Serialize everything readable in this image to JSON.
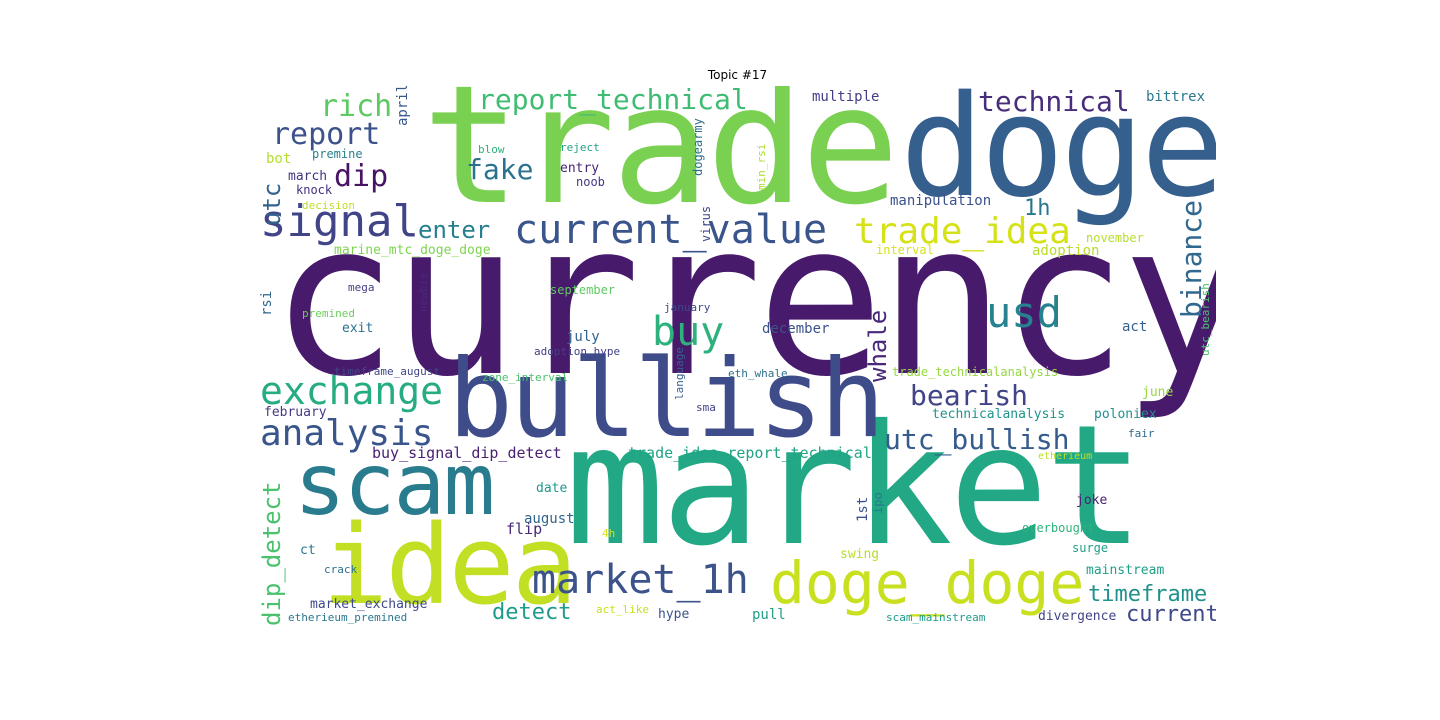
{
  "title": "Topic #17",
  "words": [
    {
      "text": "currency",
      "color": "#481a6c"
    },
    {
      "text": "trade",
      "color": "#7ad151"
    },
    {
      "text": "doge",
      "color": "#355f8d"
    },
    {
      "text": "market",
      "color": "#22a884"
    },
    {
      "text": "bullish",
      "color": "#3e4c8a"
    },
    {
      "text": "idea",
      "color": "#c2df23"
    },
    {
      "text": "scam",
      "color": "#297b8e"
    },
    {
      "text": "doge_doge",
      "color": "#c8e020"
    },
    {
      "text": "current_value",
      "color": "#3a548c"
    },
    {
      "text": "market_1h",
      "color": "#3b528b"
    },
    {
      "text": "exchange",
      "color": "#25ac82"
    },
    {
      "text": "analysis",
      "color": "#39558c"
    },
    {
      "text": "signal",
      "color": "#414487"
    },
    {
      "text": "buy_signal",
      "color": "#90d743"
    },
    {
      "text": "report_technical",
      "color": "#3fbc73"
    },
    {
      "text": "trade_idea",
      "color": "#d5e21a"
    },
    {
      "text": "usd",
      "color": "#26828e"
    },
    {
      "text": "buy",
      "color": "#2db27d"
    },
    {
      "text": "technical",
      "color": "#472d7b"
    },
    {
      "text": "utc_bullish",
      "color": "#365c8d"
    },
    {
      "text": "rich",
      "color": "#5ec962"
    },
    {
      "text": "report",
      "color": "#3b528b"
    },
    {
      "text": "binance",
      "color": "#31688e"
    },
    {
      "text": "bearish",
      "color": "#414487"
    },
    {
      "text": "whale",
      "color": "#482878"
    },
    {
      "text": "dip_detect",
      "color": "#4ac16d"
    },
    {
      "text": "fake",
      "color": "#2c728e"
    },
    {
      "text": "dip",
      "color": "#471365"
    },
    {
      "text": "enter",
      "color": "#277f8e"
    },
    {
      "text": "utc",
      "color": "#33638d"
    },
    {
      "text": "1h",
      "color": "#2a768e"
    },
    {
      "text": "timeframe",
      "color": "#21918c"
    },
    {
      "text": "detect",
      "color": "#1e9b8a"
    },
    {
      "text": "current",
      "color": "#3e4989"
    },
    {
      "text": "buy_signal_dip_detect",
      "color": "#481f70"
    },
    {
      "text": "trade_idea_report_technical",
      "color": "#20a386"
    },
    {
      "text": "manipulation",
      "color": "#3b528b"
    },
    {
      "text": "multiple",
      "color": "#433e85"
    },
    {
      "text": "bittrex",
      "color": "#2a788e"
    },
    {
      "text": "april",
      "color": "#38598c"
    },
    {
      "text": "bot",
      "color": "#b5de2b"
    },
    {
      "text": "premine",
      "color": "#26828e"
    },
    {
      "text": "march",
      "color": "#453581"
    },
    {
      "text": "knock",
      "color": "#46307e"
    },
    {
      "text": "decision",
      "color": "#bddf26"
    },
    {
      "text": "blow",
      "color": "#2db27d"
    },
    {
      "text": "reject",
      "color": "#1fa287"
    },
    {
      "text": "entry",
      "color": "#482475"
    },
    {
      "text": "noob",
      "color": "#453882"
    },
    {
      "text": "dogearmy",
      "color": "#2e6f8e"
    },
    {
      "text": "min_rsi",
      "color": "#addc30"
    },
    {
      "text": "virus",
      "color": "#404588"
    },
    {
      "text": "november",
      "color": "#b5de2b"
    },
    {
      "text": "adoption",
      "color": "#b8de29"
    },
    {
      "text": "interval",
      "color": "#d8e219"
    },
    {
      "text": "marine_mtc_doge_doge",
      "color": "#7fd34e"
    },
    {
      "text": "utc_bearish",
      "color": "#4ac16d"
    },
    {
      "text": "rsi",
      "color": "#31688e"
    },
    {
      "text": "mega",
      "color": "#433e85"
    },
    {
      "text": "newbie",
      "color": "#482979"
    },
    {
      "text": "premined",
      "color": "#6ccd5a"
    },
    {
      "text": "september",
      "color": "#5ec962"
    },
    {
      "text": "january",
      "color": "#3e4989"
    },
    {
      "text": "exit",
      "color": "#2c728e"
    },
    {
      "text": "july",
      "color": "#33638d"
    },
    {
      "text": "december",
      "color": "#3b528b"
    },
    {
      "text": "act",
      "color": "#355f8d"
    },
    {
      "text": "adoption_hype",
      "color": "#424086"
    },
    {
      "text": "language",
      "color": "#34618d"
    },
    {
      "text": "timeframe_august",
      "color": "#404688"
    },
    {
      "text": "zone_interval",
      "color": "#4ac16d"
    },
    {
      "text": "eth_whale",
      "color": "#2d708e"
    },
    {
      "text": "trade_technicalanalysis",
      "color": "#95d840"
    },
    {
      "text": "june",
      "color": "#95d840"
    },
    {
      "text": "february",
      "color": "#443a83"
    },
    {
      "text": "sma",
      "color": "#424086"
    },
    {
      "text": "technicalanalysis",
      "color": "#1f948c"
    },
    {
      "text": "poloniex",
      "color": "#21918c"
    },
    {
      "text": "fair",
      "color": "#31688e"
    },
    {
      "text": "etherieum",
      "color": "#bddf26"
    },
    {
      "text": "date",
      "color": "#1f988b"
    },
    {
      "text": "1st",
      "color": "#3b528b"
    },
    {
      "text": "ipo",
      "color": "#2a788e"
    },
    {
      "text": "joke",
      "color": "#482071"
    },
    {
      "text": "august",
      "color": "#32658e"
    },
    {
      "text": "flip",
      "color": "#482878"
    },
    {
      "text": "overbought",
      "color": "#2db27d"
    },
    {
      "text": "ct",
      "color": "#2a788e"
    },
    {
      "text": "4h",
      "color": "#d8e219"
    },
    {
      "text": "swing",
      "color": "#b5de2b"
    },
    {
      "text": "surge",
      "color": "#1f9f88"
    },
    {
      "text": "crack",
      "color": "#2c728e"
    },
    {
      "text": "mainstream",
      "color": "#1fa088"
    },
    {
      "text": "market_exchange",
      "color": "#3e4989"
    },
    {
      "text": "act_like",
      "color": "#c8e020"
    },
    {
      "text": "hype",
      "color": "#3b528b"
    },
    {
      "text": "pull",
      "color": "#1fa287"
    },
    {
      "text": "etherieum_premined",
      "color": "#2a788e"
    },
    {
      "text": "scam_mainstream",
      "color": "#1e9b8a"
    },
    {
      "text": "divergence",
      "color": "#414487"
    }
  ]
}
